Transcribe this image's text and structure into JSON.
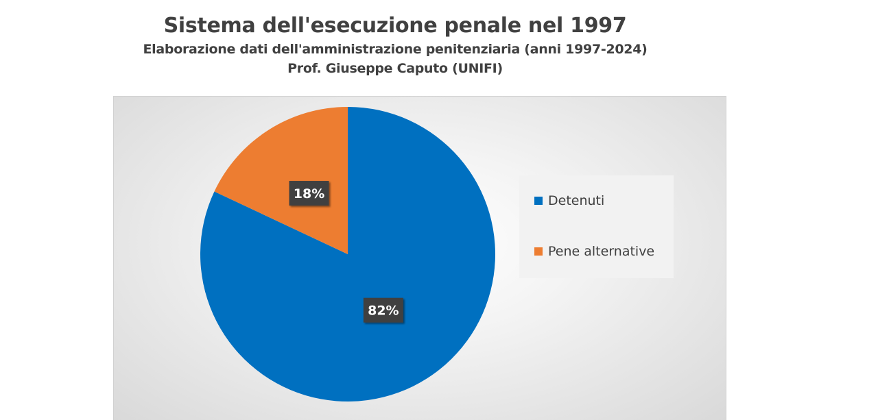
{
  "chart_data": {
    "type": "pie",
    "title": "Sistema dell'esecuzione penale nel 1997",
    "subtitle_lines": [
      "Elaborazione dati dell'amministrazione penitenziaria (anni 1997-2024)",
      "Prof. Giuseppe Caputo (UNIFI)"
    ],
    "categories": [
      "Detenuti",
      "Pene alternative"
    ],
    "values": [
      82,
      18
    ],
    "data_labels": [
      "82%",
      "18%"
    ],
    "colors": [
      "#0070C0",
      "#ED7D31"
    ],
    "legend_position": "right",
    "start_angle_deg": 0,
    "direction": "clockwise"
  }
}
